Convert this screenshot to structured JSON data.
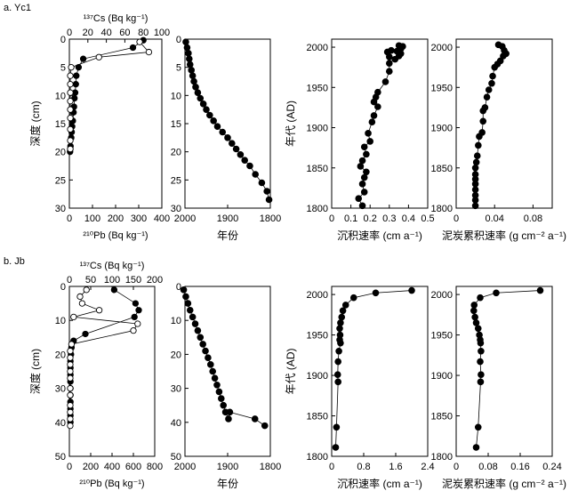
{
  "row_labels": [
    "a. Yc1",
    "b. Jb"
  ],
  "chart_data": [
    {
      "type": "scatter",
      "panel": "a-1",
      "ylabel": "深度 (cm)",
      "ylim": [
        0,
        30
      ],
      "yticks": [
        0,
        5,
        10,
        15,
        20,
        25,
        30
      ],
      "y_inverted": true,
      "x_bottom": {
        "label": "²¹⁰Pb (Bq kg⁻¹)",
        "lim": [
          0,
          400
        ],
        "ticks": [
          0,
          100,
          200,
          300,
          400
        ]
      },
      "x_top": {
        "label": "¹³⁷Cs (Bq kg⁻¹)",
        "lim": [
          0,
          100
        ],
        "ticks": [
          0,
          20,
          40,
          60,
          80,
          100
        ]
      },
      "series": [
        {
          "name": "²¹⁰Pb",
          "marker": "filled",
          "axis": "bottom",
          "x": [
            320,
            275,
            60,
            40,
            30,
            28,
            25,
            22,
            20,
            18,
            15,
            12,
            10,
            8,
            5,
            4,
            3
          ],
          "y": [
            0.2,
            1.5,
            3.5,
            5,
            6.5,
            8,
            9.5,
            10.5,
            12,
            13,
            14.5,
            15.5,
            16.5,
            17.5,
            19,
            19.5,
            20
          ]
        },
        {
          "name": "¹³⁷Cs",
          "marker": "open",
          "axis": "top",
          "x": [
            76,
            86,
            32,
            2,
            1,
            1,
            1,
            1,
            1,
            1,
            1,
            1,
            1
          ],
          "y": [
            0.5,
            2.3,
            3.2,
            5,
            6.5,
            8,
            9.5,
            11,
            12.5,
            14,
            16,
            18,
            19.5
          ]
        }
      ]
    },
    {
      "type": "line",
      "panel": "a-2",
      "xlabel": "年份",
      "xlim": [
        2000,
        1800
      ],
      "xticks": [
        2000,
        1900,
        1800
      ],
      "x_reversed": true,
      "ylim": [
        0,
        30
      ],
      "yticks": [
        0,
        5,
        10,
        15,
        20,
        25,
        30
      ],
      "y_inverted": true,
      "x": [
        1998,
        1995,
        1992,
        1990,
        1988,
        1985,
        1982,
        1979,
        1975,
        1970,
        1964,
        1957,
        1950,
        1942,
        1933,
        1924,
        1912,
        1900,
        1890,
        1880,
        1870,
        1860,
        1848,
        1835,
        1820,
        1808,
        1803
      ],
      "y": [
        0.5,
        1.5,
        2.5,
        3.5,
        4.5,
        5.5,
        6.5,
        7.5,
        8.5,
        9.5,
        10.5,
        11.5,
        12.5,
        13.5,
        14.5,
        15.5,
        16.5,
        17.5,
        18.5,
        19.5,
        20.5,
        21.5,
        22.5,
        24,
        25.5,
        27,
        28.5
      ]
    },
    {
      "type": "line",
      "panel": "a-3",
      "xlabel": "沉积速率 (cm a⁻¹)",
      "ylabel": "年代 (AD)",
      "xlim": [
        0,
        0.5
      ],
      "xticks": [
        0,
        0.1,
        0.2,
        0.3,
        0.4,
        0.5
      ],
      "ylim": [
        1800,
        2010
      ],
      "yticks": [
        1800,
        1850,
        1900,
        1950,
        2000
      ],
      "x": [
        0.35,
        0.37,
        0.36,
        0.34,
        0.36,
        0.35,
        0.31,
        0.29,
        0.3,
        0.33,
        0.3,
        0.3,
        0.28,
        0.24,
        0.23,
        0.22,
        0.24,
        0.22,
        0.21,
        0.19,
        0.2,
        0.17,
        0.18,
        0.16,
        0.15,
        0.18,
        0.17,
        0.16,
        0.17,
        0.14,
        0.16
      ],
      "y": [
        2002,
        2001,
        1998,
        1995,
        1992,
        1989,
        1996,
        1994,
        1988,
        1985,
        1980,
        1970,
        1957,
        1944,
        1938,
        1932,
        1926,
        1915,
        1907,
        1893,
        1883,
        1876,
        1867,
        1859,
        1852,
        1845,
        1838,
        1830,
        1820,
        1812,
        1803
      ]
    },
    {
      "type": "line",
      "panel": "a-4",
      "xlabel": "泥炭累积速率 (g cm⁻² a⁻¹)",
      "xlim": [
        0,
        0.1
      ],
      "xticks": [
        0,
        0.04,
        0.08
      ],
      "ylim": [
        1800,
        2010
      ],
      "yticks": [
        1800,
        1850,
        1900,
        1950,
        2000
      ],
      "x": [
        0.044,
        0.048,
        0.05,
        0.052,
        0.049,
        0.046,
        0.043,
        0.04,
        0.038,
        0.037,
        0.034,
        0.032,
        0.03,
        0.028,
        0.028,
        0.027,
        0.024,
        0.023,
        0.022,
        0.021,
        0.02,
        0.02,
        0.02,
        0.02,
        0.02,
        0.02,
        0.02,
        0.02
      ],
      "y": [
        2003,
        2001,
        1996,
        1992,
        1989,
        1983,
        1979,
        1975,
        1964,
        1955,
        1947,
        1938,
        1925,
        1921,
        1908,
        1894,
        1889,
        1878,
        1865,
        1857,
        1850,
        1842,
        1836,
        1830,
        1823,
        1816,
        1810,
        1803
      ]
    },
    {
      "type": "scatter",
      "panel": "b-1",
      "ylabel": "深度 (cm)",
      "ylim": [
        0,
        50
      ],
      "yticks": [
        0,
        10,
        20,
        30,
        40,
        50
      ],
      "y_inverted": true,
      "x_bottom": {
        "label": "²¹⁰Pb (Bq kg⁻¹)",
        "lim": [
          0,
          800
        ],
        "ticks": [
          0,
          200,
          400,
          600,
          800
        ]
      },
      "x_top": {
        "label": "¹³⁷Cs (Bq kg⁻¹)",
        "lim": [
          0,
          200
        ],
        "ticks": [
          0,
          50,
          100,
          150,
          200
        ]
      },
      "series": [
        {
          "name": "²¹⁰Pb",
          "marker": "filled",
          "axis": "bottom",
          "x": [
            420,
            620,
            650,
            610,
            150,
            40,
            20,
            15,
            10,
            10,
            10,
            10,
            10,
            10,
            10,
            10,
            10,
            10
          ],
          "y": [
            1,
            5,
            7,
            9,
            14,
            16,
            18,
            20,
            22,
            24,
            26,
            28,
            30,
            32,
            34,
            36,
            38,
            40
          ]
        },
        {
          "name": "¹³⁷Cs",
          "marker": "open",
          "axis": "top",
          "x": [
            40,
            25,
            30,
            70,
            10,
            160,
            150,
            5,
            2,
            2,
            2,
            2,
            2,
            2,
            2,
            2,
            2,
            2,
            2
          ],
          "y": [
            1,
            3,
            5,
            7,
            9,
            11,
            13,
            17,
            19,
            21,
            23,
            25,
            27,
            30,
            32,
            35,
            37,
            39,
            41
          ]
        }
      ]
    },
    {
      "type": "line",
      "panel": "b-2",
      "xlabel": "年份",
      "xlim": [
        2000,
        1800
      ],
      "xticks": [
        2000,
        1900,
        1800
      ],
      "x_reversed": true,
      "ylim": [
        0,
        50
      ],
      "yticks": [
        0,
        10,
        20,
        30,
        40,
        50
      ],
      "y_inverted": true,
      "x": [
        2003,
        1998,
        1993,
        1988,
        1982,
        1976,
        1970,
        1964,
        1958,
        1952,
        1946,
        1940,
        1935,
        1930,
        1925,
        1920,
        1915,
        1910,
        1905,
        1898,
        1895,
        1836,
        1813
      ],
      "y": [
        1,
        3,
        5,
        7,
        9,
        11,
        13,
        15,
        17,
        19,
        21,
        23,
        25,
        27,
        29,
        31,
        33,
        35,
        37,
        39,
        37,
        39,
        41
      ]
    },
    {
      "type": "line",
      "panel": "b-3",
      "xlabel": "沉积速率 (cm a⁻¹)",
      "ylabel": "年代 (AD)",
      "xlim": [
        0,
        2.4
      ],
      "xticks": [
        0,
        0.8,
        1.6,
        2.4
      ],
      "ylim": [
        1800,
        2010
      ],
      "yticks": [
        1800,
        1850,
        1900,
        1950,
        2000
      ],
      "x": [
        2.0,
        1.1,
        0.55,
        0.35,
        0.28,
        0.25,
        0.22,
        0.2,
        0.21,
        0.2,
        0.22,
        0.18,
        0.16,
        0.15,
        0.16,
        0.12,
        0.1
      ],
      "y": [
        2005,
        2002,
        1996,
        1987,
        1980,
        1972,
        1965,
        1958,
        1950,
        1944,
        1940,
        1930,
        1917,
        1901,
        1892,
        1836,
        1811
      ]
    },
    {
      "type": "line",
      "panel": "b-4",
      "xlabel": "泥炭累积速率 (g cm⁻² a⁻¹)",
      "xlim": [
        0,
        0.24
      ],
      "xticks": [
        0,
        0.08,
        0.16,
        0.24
      ],
      "ylim": [
        1800,
        2010
      ],
      "yticks": [
        1800,
        1850,
        1900,
        1950,
        2000
      ],
      "x": [
        0.21,
        0.1,
        0.06,
        0.045,
        0.044,
        0.047,
        0.05,
        0.055,
        0.058,
        0.06,
        0.061,
        0.062,
        0.06,
        0.062,
        0.061,
        0.055,
        0.05
      ],
      "y": [
        2005,
        2002,
        1996,
        1987,
        1980,
        1972,
        1965,
        1958,
        1950,
        1944,
        1940,
        1930,
        1917,
        1901,
        1892,
        1836,
        1811
      ]
    }
  ]
}
